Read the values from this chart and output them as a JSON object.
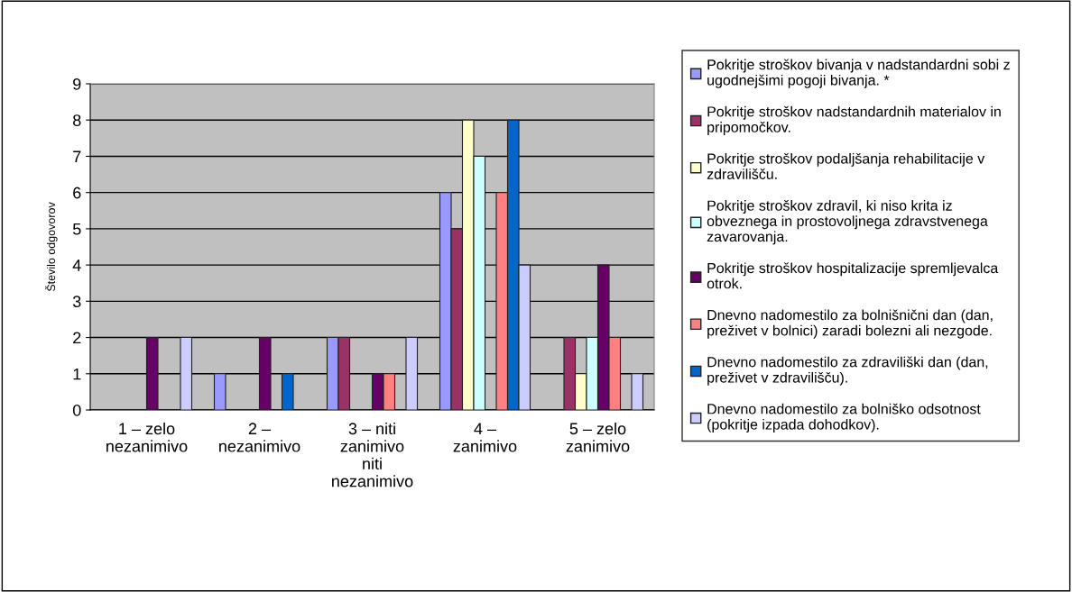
{
  "chart_data": {
    "type": "bar",
    "ylabel": "Število odgovorov",
    "categories": [
      "1 – zelo\nnezanimivo",
      "2 –\nnezanimivo",
      "3 – niti\nzanimivo\nniti\nnezanimivo",
      "4 –\nzanimivo",
      "5 – zelo\nzanimivo"
    ],
    "series": [
      {
        "name": "Pokritje stroškov bivanja v nadstandardni sobi z\nugodnejšimi pogoji bivanja. *",
        "color": "#9999ff",
        "values": [
          0,
          1,
          2,
          6,
          0
        ]
      },
      {
        "name": "Pokritje stroškov nadstandardnih materialov in\npripomočkov.",
        "color": "#993366",
        "values": [
          0,
          0,
          2,
          5,
          2
        ]
      },
      {
        "name": "Pokritje stroškov podaljšanja rehabilitacije v\nzdravilišču.",
        "color": "#ffffcc",
        "values": [
          0,
          0,
          0,
          8,
          1
        ]
      },
      {
        "name": "Pokritje stroškov zdravil, ki niso krita iz\nobveznega in prostovoljnega zdravstvenega\nzavarovanja.",
        "color": "#ccffff",
        "values": [
          0,
          0,
          0,
          7,
          2
        ]
      },
      {
        "name": "Pokritje stroškov hospitalizacije spremljevalca\notrok.",
        "color": "#660066",
        "values": [
          2,
          2,
          1,
          0,
          4
        ]
      },
      {
        "name": "Dnevno nadomestilo za bolnišnični dan (dan,\npreživet v bolnici) zaradi bolezni ali nezgode.",
        "color": "#ff8080",
        "values": [
          0,
          0,
          1,
          6,
          2
        ]
      },
      {
        "name": "Dnevno nadomestilo za zdraviliški dan (dan,\npreživet v zdravilišču).",
        "color": "#0066cc",
        "values": [
          0,
          1,
          0,
          8,
          0
        ]
      },
      {
        "name": "Dnevno nadomestilo za bolniško odsotnost\n(pokritje izpada dohodkov).",
        "color": "#ccccff",
        "values": [
          2,
          0,
          2,
          4,
          1
        ]
      }
    ],
    "ylim": [
      0,
      9
    ],
    "yticks": [
      0,
      1,
      2,
      3,
      4,
      5,
      6,
      7,
      8,
      9
    ],
    "grid": "y",
    "legend": "right"
  }
}
